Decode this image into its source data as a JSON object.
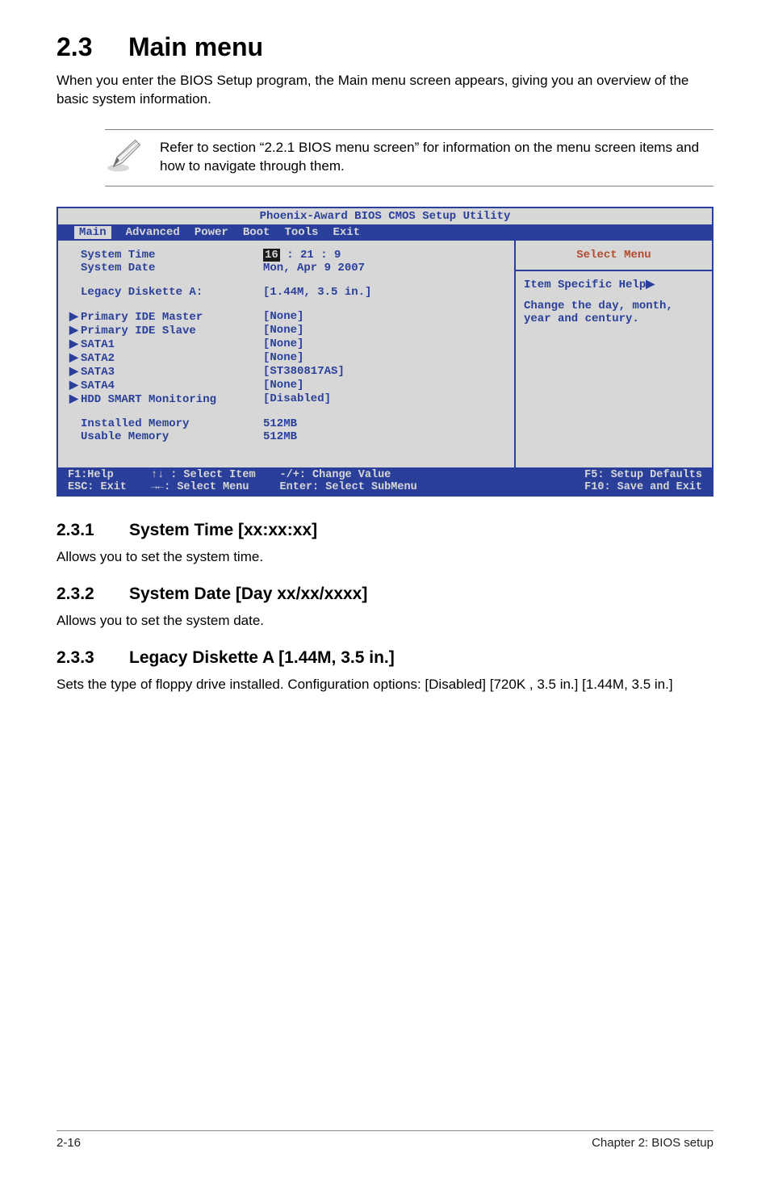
{
  "heading": {
    "number": "2.3",
    "title": "Main menu"
  },
  "intro": "When you enter the BIOS Setup program, the Main menu screen appears, giving you an overview of the basic system information.",
  "note": "Refer to section “2.2.1  BIOS menu screen” for information on the menu screen items and how to navigate through them.",
  "bios": {
    "title": "Phoenix-Award BIOS CMOS Setup Utility",
    "menu": [
      "Main",
      "Advanced",
      "Power",
      "Boot",
      "Tools",
      "Exit"
    ],
    "menu_active": "Main",
    "colors": {
      "frame": "#2a3f9a",
      "panel_bg": "#d7d7d7",
      "accent": "#b34b2e",
      "menubar_bg": "#2a3f9a",
      "menubar_fg": "#d7d7d7"
    },
    "left": {
      "system_time_label": "System Time",
      "system_time_hh": "16",
      "system_time_rest": " : 21 : 9",
      "system_date_label": "System Date",
      "system_date_value": "Mon, Apr  9 2007",
      "legacy_label": "Legacy Diskette A:",
      "legacy_value": "[1.44M, 3.5 in.]",
      "rows": [
        {
          "caret": "▶",
          "label": "Primary IDE Master",
          "value": "[None]"
        },
        {
          "caret": "▶",
          "label": "Primary IDE Slave",
          "value": "[None]"
        },
        {
          "caret": "▶",
          "label": "SATA1",
          "value": "[None]"
        },
        {
          "caret": "▶",
          "label": "SATA2",
          "value": "[None]"
        },
        {
          "caret": "▶",
          "label": "SATA3",
          "value": "[ST380817AS]"
        },
        {
          "caret": "▶",
          "label": "SATA4",
          "value": "[None]"
        },
        {
          "caret": "▶",
          "label": "HDD SMART Monitoring",
          "value": "[Disabled]"
        }
      ],
      "mem": [
        {
          "label": "Installed Memory",
          "value": "512MB"
        },
        {
          "label": "Usable Memory",
          "value": "512MB"
        }
      ]
    },
    "right": {
      "select_menu": "Select Menu",
      "help_title": "Item Specific Help▶",
      "help_body": "Change the day, month, year and century."
    },
    "footer": {
      "c1": "F1:Help\nESC: Exit",
      "c2": "↑↓ : Select Item\n→←: Select Menu",
      "c3": "-/+: Change Value\nEnter: Select SubMenu",
      "c4": "F5: Setup Defaults\nF10: Save and Exit"
    }
  },
  "sections": [
    {
      "num": "2.3.1",
      "title": "System Time [xx:xx:xx]",
      "body": "Allows you to set the system time."
    },
    {
      "num": "2.3.2",
      "title": "System Date [Day xx/xx/xxxx]",
      "body": "Allows you to set the system date."
    },
    {
      "num": "2.3.3",
      "title": "Legacy Diskette A [1.44M, 3.5 in.]",
      "body": "Sets the type of floppy drive installed. Configuration options: [Disabled] [720K , 3.5 in.] [1.44M, 3.5 in.]"
    }
  ],
  "footer": {
    "left": "2-16",
    "right": "Chapter 2: BIOS setup"
  }
}
